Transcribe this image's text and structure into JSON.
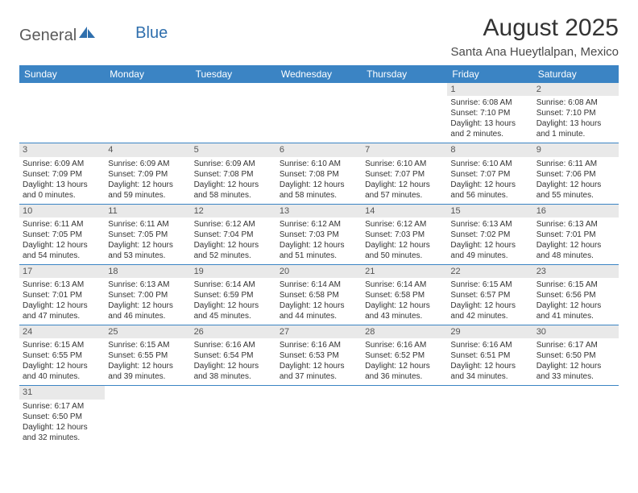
{
  "logo": {
    "text1": "General",
    "text2": "Blue"
  },
  "title": "August 2025",
  "location": "Santa Ana Hueytlalpan, Mexico",
  "colors": {
    "header_bg": "#3b84c4",
    "header_text": "#ffffff",
    "daynum_bg": "#e9e9e9",
    "cell_border": "#3b84c4",
    "body_text": "#333333",
    "logo_gray": "#5a5a5a",
    "logo_blue": "#2f6fad",
    "page_bg": "#ffffff"
  },
  "typography": {
    "title_fontsize": 30,
    "location_fontsize": 15,
    "dayheader_fontsize": 12,
    "cell_fontsize": 10,
    "font_family": "Arial"
  },
  "day_headers": [
    "Sunday",
    "Monday",
    "Tuesday",
    "Wednesday",
    "Thursday",
    "Friday",
    "Saturday"
  ],
  "weeks": [
    [
      null,
      null,
      null,
      null,
      null,
      {
        "n": "1",
        "sr": "Sunrise: 6:08 AM",
        "ss": "Sunset: 7:10 PM",
        "d1": "Daylight: 13 hours",
        "d2": "and 2 minutes."
      },
      {
        "n": "2",
        "sr": "Sunrise: 6:08 AM",
        "ss": "Sunset: 7:10 PM",
        "d1": "Daylight: 13 hours",
        "d2": "and 1 minute."
      }
    ],
    [
      {
        "n": "3",
        "sr": "Sunrise: 6:09 AM",
        "ss": "Sunset: 7:09 PM",
        "d1": "Daylight: 13 hours",
        "d2": "and 0 minutes."
      },
      {
        "n": "4",
        "sr": "Sunrise: 6:09 AM",
        "ss": "Sunset: 7:09 PM",
        "d1": "Daylight: 12 hours",
        "d2": "and 59 minutes."
      },
      {
        "n": "5",
        "sr": "Sunrise: 6:09 AM",
        "ss": "Sunset: 7:08 PM",
        "d1": "Daylight: 12 hours",
        "d2": "and 58 minutes."
      },
      {
        "n": "6",
        "sr": "Sunrise: 6:10 AM",
        "ss": "Sunset: 7:08 PM",
        "d1": "Daylight: 12 hours",
        "d2": "and 58 minutes."
      },
      {
        "n": "7",
        "sr": "Sunrise: 6:10 AM",
        "ss": "Sunset: 7:07 PM",
        "d1": "Daylight: 12 hours",
        "d2": "and 57 minutes."
      },
      {
        "n": "8",
        "sr": "Sunrise: 6:10 AM",
        "ss": "Sunset: 7:07 PM",
        "d1": "Daylight: 12 hours",
        "d2": "and 56 minutes."
      },
      {
        "n": "9",
        "sr": "Sunrise: 6:11 AM",
        "ss": "Sunset: 7:06 PM",
        "d1": "Daylight: 12 hours",
        "d2": "and 55 minutes."
      }
    ],
    [
      {
        "n": "10",
        "sr": "Sunrise: 6:11 AM",
        "ss": "Sunset: 7:05 PM",
        "d1": "Daylight: 12 hours",
        "d2": "and 54 minutes."
      },
      {
        "n": "11",
        "sr": "Sunrise: 6:11 AM",
        "ss": "Sunset: 7:05 PM",
        "d1": "Daylight: 12 hours",
        "d2": "and 53 minutes."
      },
      {
        "n": "12",
        "sr": "Sunrise: 6:12 AM",
        "ss": "Sunset: 7:04 PM",
        "d1": "Daylight: 12 hours",
        "d2": "and 52 minutes."
      },
      {
        "n": "13",
        "sr": "Sunrise: 6:12 AM",
        "ss": "Sunset: 7:03 PM",
        "d1": "Daylight: 12 hours",
        "d2": "and 51 minutes."
      },
      {
        "n": "14",
        "sr": "Sunrise: 6:12 AM",
        "ss": "Sunset: 7:03 PM",
        "d1": "Daylight: 12 hours",
        "d2": "and 50 minutes."
      },
      {
        "n": "15",
        "sr": "Sunrise: 6:13 AM",
        "ss": "Sunset: 7:02 PM",
        "d1": "Daylight: 12 hours",
        "d2": "and 49 minutes."
      },
      {
        "n": "16",
        "sr": "Sunrise: 6:13 AM",
        "ss": "Sunset: 7:01 PM",
        "d1": "Daylight: 12 hours",
        "d2": "and 48 minutes."
      }
    ],
    [
      {
        "n": "17",
        "sr": "Sunrise: 6:13 AM",
        "ss": "Sunset: 7:01 PM",
        "d1": "Daylight: 12 hours",
        "d2": "and 47 minutes."
      },
      {
        "n": "18",
        "sr": "Sunrise: 6:13 AM",
        "ss": "Sunset: 7:00 PM",
        "d1": "Daylight: 12 hours",
        "d2": "and 46 minutes."
      },
      {
        "n": "19",
        "sr": "Sunrise: 6:14 AM",
        "ss": "Sunset: 6:59 PM",
        "d1": "Daylight: 12 hours",
        "d2": "and 45 minutes."
      },
      {
        "n": "20",
        "sr": "Sunrise: 6:14 AM",
        "ss": "Sunset: 6:58 PM",
        "d1": "Daylight: 12 hours",
        "d2": "and 44 minutes."
      },
      {
        "n": "21",
        "sr": "Sunrise: 6:14 AM",
        "ss": "Sunset: 6:58 PM",
        "d1": "Daylight: 12 hours",
        "d2": "and 43 minutes."
      },
      {
        "n": "22",
        "sr": "Sunrise: 6:15 AM",
        "ss": "Sunset: 6:57 PM",
        "d1": "Daylight: 12 hours",
        "d2": "and 42 minutes."
      },
      {
        "n": "23",
        "sr": "Sunrise: 6:15 AM",
        "ss": "Sunset: 6:56 PM",
        "d1": "Daylight: 12 hours",
        "d2": "and 41 minutes."
      }
    ],
    [
      {
        "n": "24",
        "sr": "Sunrise: 6:15 AM",
        "ss": "Sunset: 6:55 PM",
        "d1": "Daylight: 12 hours",
        "d2": "and 40 minutes."
      },
      {
        "n": "25",
        "sr": "Sunrise: 6:15 AM",
        "ss": "Sunset: 6:55 PM",
        "d1": "Daylight: 12 hours",
        "d2": "and 39 minutes."
      },
      {
        "n": "26",
        "sr": "Sunrise: 6:16 AM",
        "ss": "Sunset: 6:54 PM",
        "d1": "Daylight: 12 hours",
        "d2": "and 38 minutes."
      },
      {
        "n": "27",
        "sr": "Sunrise: 6:16 AM",
        "ss": "Sunset: 6:53 PM",
        "d1": "Daylight: 12 hours",
        "d2": "and 37 minutes."
      },
      {
        "n": "28",
        "sr": "Sunrise: 6:16 AM",
        "ss": "Sunset: 6:52 PM",
        "d1": "Daylight: 12 hours",
        "d2": "and 36 minutes."
      },
      {
        "n": "29",
        "sr": "Sunrise: 6:16 AM",
        "ss": "Sunset: 6:51 PM",
        "d1": "Daylight: 12 hours",
        "d2": "and 34 minutes."
      },
      {
        "n": "30",
        "sr": "Sunrise: 6:17 AM",
        "ss": "Sunset: 6:50 PM",
        "d1": "Daylight: 12 hours",
        "d2": "and 33 minutes."
      }
    ],
    [
      {
        "n": "31",
        "sr": "Sunrise: 6:17 AM",
        "ss": "Sunset: 6:50 PM",
        "d1": "Daylight: 12 hours",
        "d2": "and 32 minutes."
      },
      null,
      null,
      null,
      null,
      null,
      null
    ]
  ]
}
